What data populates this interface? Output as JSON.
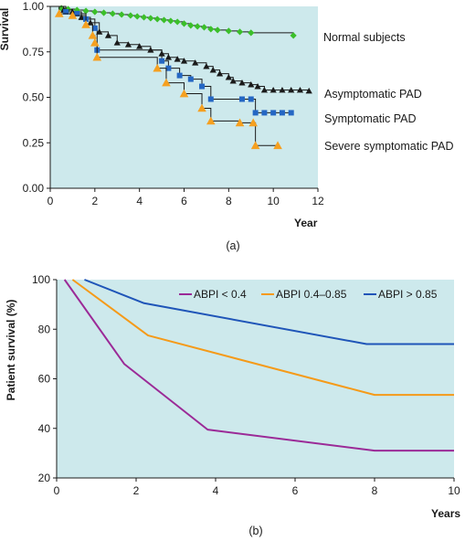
{
  "chart_data": [
    {
      "type": "line",
      "panel_label": "(a)",
      "xlabel": "Year",
      "ylabel": "Survival",
      "xlim": [
        0,
        12
      ],
      "ylim": [
        0,
        1
      ],
      "xticks": [
        "0",
        "2",
        "4",
        "6",
        "8",
        "10",
        "12"
      ],
      "yticks": [
        "0.00",
        "0.25",
        "0.50",
        "0.75",
        "1.00"
      ],
      "background": "#cde9ec",
      "step": true,
      "series": [
        {
          "name": "Normal subjects",
          "color": "#3bbf2a",
          "marker": "diamond",
          "points": [
            [
              0,
              1.0
            ],
            [
              0.5,
              0.99
            ],
            [
              0.8,
              0.985
            ],
            [
              1.2,
              0.98
            ],
            [
              1.6,
              0.975
            ],
            [
              2.0,
              0.97
            ],
            [
              2.4,
              0.965
            ],
            [
              2.8,
              0.96
            ],
            [
              3.2,
              0.955
            ],
            [
              3.6,
              0.95
            ],
            [
              3.9,
              0.945
            ],
            [
              4.2,
              0.94
            ],
            [
              4.5,
              0.935
            ],
            [
              4.8,
              0.93
            ],
            [
              5.1,
              0.925
            ],
            [
              5.4,
              0.92
            ],
            [
              5.7,
              0.915
            ],
            [
              6.0,
              0.905
            ],
            [
              6.3,
              0.895
            ],
            [
              6.6,
              0.89
            ],
            [
              6.9,
              0.885
            ],
            [
              7.2,
              0.875
            ],
            [
              7.5,
              0.87
            ],
            [
              8.0,
              0.865
            ],
            [
              8.5,
              0.86
            ],
            [
              9.0,
              0.855
            ],
            [
              10.9,
              0.84
            ]
          ]
        },
        {
          "name": "Asymptomatic PAD",
          "color": "#1a1a1a",
          "marker": "triangle",
          "points": [
            [
              0,
              1.0
            ],
            [
              0.6,
              0.98
            ],
            [
              1.0,
              0.97
            ],
            [
              1.4,
              0.94
            ],
            [
              1.8,
              0.91
            ],
            [
              2.2,
              0.86
            ],
            [
              2.6,
              0.84
            ],
            [
              3.0,
              0.8
            ],
            [
              3.5,
              0.79
            ],
            [
              4.0,
              0.78
            ],
            [
              4.5,
              0.76
            ],
            [
              5.0,
              0.74
            ],
            [
              5.3,
              0.72
            ],
            [
              5.7,
              0.71
            ],
            [
              6.0,
              0.7
            ],
            [
              6.5,
              0.69
            ],
            [
              7.0,
              0.67
            ],
            [
              7.3,
              0.65
            ],
            [
              7.6,
              0.63
            ],
            [
              8.0,
              0.61
            ],
            [
              8.2,
              0.59
            ],
            [
              8.6,
              0.58
            ],
            [
              9.0,
              0.57
            ],
            [
              9.3,
              0.56
            ],
            [
              9.6,
              0.54
            ],
            [
              10.0,
              0.54
            ],
            [
              10.4,
              0.54
            ],
            [
              10.8,
              0.54
            ],
            [
              11.2,
              0.54
            ],
            [
              11.6,
              0.535
            ]
          ]
        },
        {
          "name": "Symptomatic PAD",
          "color": "#2467c4",
          "marker": "square",
          "points": [
            [
              0,
              1.0
            ],
            [
              0.7,
              0.97
            ],
            [
              1.2,
              0.96
            ],
            [
              1.6,
              0.93
            ],
            [
              2.0,
              0.88
            ],
            [
              2.1,
              0.76
            ],
            [
              5.0,
              0.7
            ],
            [
              5.3,
              0.66
            ],
            [
              5.8,
              0.62
            ],
            [
              6.3,
              0.6
            ],
            [
              6.8,
              0.56
            ],
            [
              7.2,
              0.49
            ],
            [
              8.6,
              0.49
            ],
            [
              9.0,
              0.49
            ],
            [
              9.2,
              0.415
            ],
            [
              9.6,
              0.415
            ],
            [
              10.0,
              0.415
            ],
            [
              10.4,
              0.415
            ],
            [
              10.8,
              0.415
            ]
          ]
        },
        {
          "name": "Severe symptomatic PAD",
          "color": "#f5a020",
          "marker": "triangle",
          "points": [
            [
              0,
              1.0
            ],
            [
              0.4,
              0.96
            ],
            [
              1.0,
              0.95
            ],
            [
              1.6,
              0.9
            ],
            [
              1.9,
              0.84
            ],
            [
              2.0,
              0.8
            ],
            [
              2.1,
              0.72
            ],
            [
              4.8,
              0.66
            ],
            [
              5.2,
              0.58
            ],
            [
              6.0,
              0.52
            ],
            [
              6.8,
              0.44
            ],
            [
              7.2,
              0.37
            ],
            [
              8.5,
              0.36
            ],
            [
              9.1,
              0.36
            ],
            [
              9.2,
              0.235
            ],
            [
              10.2,
              0.235
            ]
          ]
        }
      ]
    },
    {
      "type": "line",
      "panel_label": "(b)",
      "xlabel": "Years",
      "ylabel": "Patient survival (%)",
      "xlim": [
        0,
        10
      ],
      "ylim": [
        20,
        100
      ],
      "xticks": [
        "0",
        "2",
        "4",
        "6",
        "8",
        "10"
      ],
      "yticks": [
        "20",
        "40",
        "60",
        "80",
        "100"
      ],
      "background": "#cde9ec",
      "legend_position": "top-right",
      "series": [
        {
          "name": "ABPI < 0.4",
          "color": "#9b2a97",
          "points": [
            [
              0.2,
              100
            ],
            [
              1.7,
              66
            ],
            [
              3.8,
              39.5
            ],
            [
              8.0,
              31
            ],
            [
              10,
              31
            ]
          ]
        },
        {
          "name": "ABPI 0.4–0.85",
          "color": "#f59a18",
          "points": [
            [
              0.4,
              100
            ],
            [
              2.3,
              77.5
            ],
            [
              8.0,
              53.5
            ],
            [
              10,
              53.5
            ]
          ]
        },
        {
          "name": "ABPI > 0.85",
          "color": "#1f55b8",
          "points": [
            [
              0.7,
              100
            ],
            [
              2.2,
              90.5
            ],
            [
              7.8,
              74
            ],
            [
              10,
              74
            ]
          ]
        }
      ]
    }
  ]
}
